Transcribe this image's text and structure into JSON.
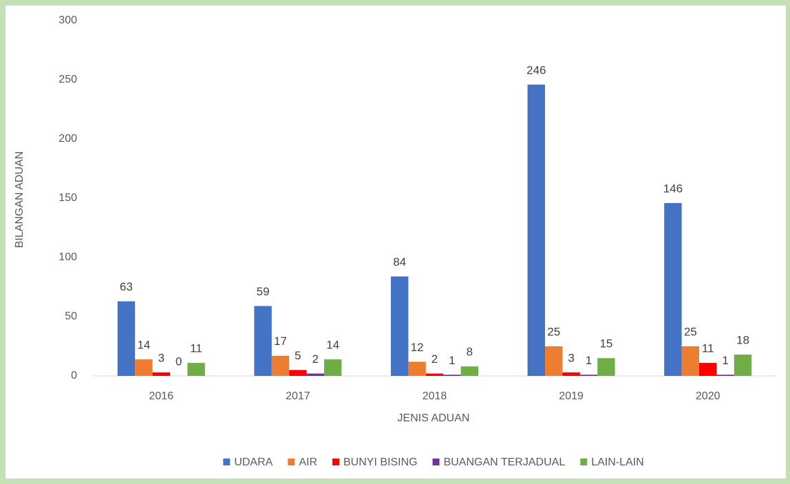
{
  "chart_data": {
    "type": "bar",
    "y_label": "BILANGAN ADUAN",
    "x_label": "JENIS ADUAN",
    "categories": [
      "2016",
      "2017",
      "2018",
      "2019",
      "2020"
    ],
    "series": [
      {
        "name": "UDARA",
        "color": "#4472c4",
        "values": [
          63,
          59,
          84,
          246,
          146
        ]
      },
      {
        "name": "AIR",
        "color": "#ed7d31",
        "values": [
          14,
          17,
          12,
          25,
          25
        ]
      },
      {
        "name": "BUNYI BISING",
        "color": "#ff0000",
        "values": [
          3,
          5,
          2,
          3,
          11
        ]
      },
      {
        "name": "BUANGAN TERJADUAL",
        "color": "#7030a0",
        "values": [
          0,
          2,
          1,
          1,
          1
        ]
      },
      {
        "name": "LAIN-LAIN",
        "color": "#70ad47",
        "values": [
          11,
          14,
          8,
          15,
          18
        ]
      }
    ],
    "ylim": [
      0,
      300
    ],
    "yticks": [
      0,
      50,
      100,
      150,
      200,
      250,
      300
    ],
    "grid": false,
    "legend": "bottom"
  }
}
